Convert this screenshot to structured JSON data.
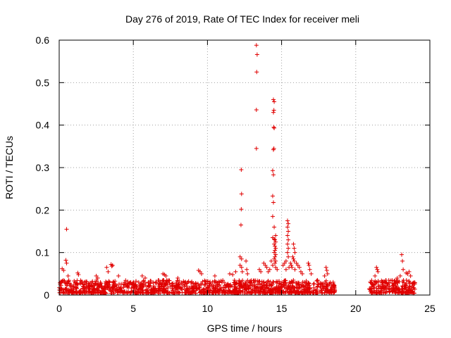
{
  "chart_data": {
    "type": "scatter",
    "title": "Day 276 of 2019, Rate Of TEC Index for receiver meli",
    "xlabel": "GPS time / hours",
    "ylabel": "ROTI / TECUs",
    "xlim": [
      0,
      25
    ],
    "ylim": [
      0,
      0.6
    ],
    "xticks": [
      0,
      5,
      10,
      15,
      20,
      25
    ],
    "xtick_labels": [
      "0",
      "5",
      "10",
      "15",
      "20",
      "25"
    ],
    "yticks": [
      0,
      0.1,
      0.2,
      0.3,
      0.4,
      0.5,
      0.6
    ],
    "ytick_labels": [
      "0",
      "0.1",
      "0.2",
      "0.3",
      "0.4",
      "0.5",
      "0.6"
    ],
    "grid": true,
    "marker": "+",
    "color": "#e00000",
    "background_band": {
      "segments": [
        [
          0.0,
          18.6
        ],
        [
          20.9,
          24.0
        ]
      ],
      "base_min": 0.004,
      "base_max": 0.035
    },
    "series": [
      {
        "name": "ROTI",
        "points": [
          [
            0.5,
            0.155
          ],
          [
            0.2,
            0.062
          ],
          [
            0.3,
            0.058
          ],
          [
            0.45,
            0.082
          ],
          [
            0.5,
            0.075
          ],
          [
            0.6,
            0.045
          ],
          [
            1.25,
            0.052
          ],
          [
            1.3,
            0.048
          ],
          [
            2.5,
            0.045
          ],
          [
            2.6,
            0.04
          ],
          [
            3.2,
            0.065
          ],
          [
            3.3,
            0.055
          ],
          [
            3.5,
            0.072
          ],
          [
            3.6,
            0.07
          ],
          [
            3.55,
            0.068
          ],
          [
            4.0,
            0.045
          ],
          [
            5.6,
            0.045
          ],
          [
            5.8,
            0.04
          ],
          [
            7.0,
            0.05
          ],
          [
            7.1,
            0.048
          ],
          [
            7.2,
            0.045
          ],
          [
            8.0,
            0.04
          ],
          [
            9.4,
            0.058
          ],
          [
            9.5,
            0.055
          ],
          [
            9.6,
            0.05
          ],
          [
            10.5,
            0.045
          ],
          [
            11.5,
            0.05
          ],
          [
            11.7,
            0.048
          ],
          [
            11.9,
            0.055
          ],
          [
            12.2,
            0.09
          ],
          [
            12.3,
            0.085
          ],
          [
            12.2,
            0.07
          ],
          [
            12.3,
            0.065
          ],
          [
            12.35,
            0.055
          ],
          [
            12.28,
            0.295
          ],
          [
            12.3,
            0.238
          ],
          [
            12.28,
            0.202
          ],
          [
            12.26,
            0.165
          ],
          [
            12.6,
            0.08
          ],
          [
            12.65,
            0.06
          ],
          [
            12.7,
            0.05
          ],
          [
            13.3,
            0.588
          ],
          [
            13.35,
            0.566
          ],
          [
            13.32,
            0.525
          ],
          [
            13.3,
            0.436
          ],
          [
            13.3,
            0.345
          ],
          [
            13.5,
            0.06
          ],
          [
            13.6,
            0.055
          ],
          [
            13.8,
            0.075
          ],
          [
            13.9,
            0.07
          ],
          [
            14.0,
            0.065
          ],
          [
            14.1,
            0.055
          ],
          [
            14.45,
            0.46
          ],
          [
            14.5,
            0.455
          ],
          [
            14.48,
            0.435
          ],
          [
            14.45,
            0.43
          ],
          [
            14.47,
            0.395
          ],
          [
            14.5,
            0.393
          ],
          [
            14.48,
            0.345
          ],
          [
            14.45,
            0.342
          ],
          [
            14.4,
            0.293
          ],
          [
            14.45,
            0.283
          ],
          [
            14.4,
            0.233
          ],
          [
            14.45,
            0.218
          ],
          [
            14.4,
            0.185
          ],
          [
            14.5,
            0.16
          ],
          [
            14.6,
            0.14
          ],
          [
            14.55,
            0.13
          ],
          [
            14.6,
            0.125
          ],
          [
            14.5,
            0.12
          ],
          [
            14.55,
            0.115
          ],
          [
            14.6,
            0.11
          ],
          [
            14.55,
            0.105
          ],
          [
            14.5,
            0.1
          ],
          [
            14.6,
            0.095
          ],
          [
            14.55,
            0.09
          ],
          [
            14.5,
            0.085
          ],
          [
            14.6,
            0.08
          ],
          [
            14.55,
            0.075
          ],
          [
            14.4,
            0.07
          ],
          [
            14.6,
            0.065
          ],
          [
            14.7,
            0.06
          ],
          [
            14.4,
            0.135
          ],
          [
            14.5,
            0.132
          ],
          [
            14.3,
            0.08
          ],
          [
            14.2,
            0.06
          ],
          [
            15.4,
            0.175
          ],
          [
            15.45,
            0.168
          ],
          [
            15.4,
            0.16
          ],
          [
            15.45,
            0.15
          ],
          [
            15.4,
            0.14
          ],
          [
            15.45,
            0.13
          ],
          [
            15.4,
            0.12
          ],
          [
            15.45,
            0.11
          ],
          [
            15.4,
            0.1
          ],
          [
            15.45,
            0.09
          ],
          [
            15.3,
            0.08
          ],
          [
            15.2,
            0.075
          ],
          [
            15.1,
            0.07
          ],
          [
            15.5,
            0.065
          ],
          [
            15.3,
            0.06
          ],
          [
            15.6,
            0.075
          ],
          [
            15.65,
            0.07
          ],
          [
            15.7,
            0.065
          ],
          [
            15.8,
            0.12
          ],
          [
            15.85,
            0.11
          ],
          [
            15.9,
            0.1
          ],
          [
            15.75,
            0.09
          ],
          [
            15.8,
            0.085
          ],
          [
            15.85,
            0.08
          ],
          [
            15.9,
            0.06
          ],
          [
            16.0,
            0.075
          ],
          [
            16.1,
            0.07
          ],
          [
            16.2,
            0.065
          ],
          [
            16.3,
            0.055
          ],
          [
            16.4,
            0.05
          ],
          [
            16.8,
            0.075
          ],
          [
            16.85,
            0.07
          ],
          [
            16.9,
            0.06
          ],
          [
            17.0,
            0.05
          ],
          [
            18.0,
            0.065
          ],
          [
            18.05,
            0.058
          ],
          [
            18.1,
            0.05
          ],
          [
            17.9,
            0.045
          ],
          [
            21.4,
            0.065
          ],
          [
            21.45,
            0.06
          ],
          [
            21.5,
            0.055
          ],
          [
            21.3,
            0.045
          ],
          [
            23.1,
            0.095
          ],
          [
            23.15,
            0.08
          ],
          [
            23.2,
            0.06
          ],
          [
            23.4,
            0.052
          ],
          [
            23.5,
            0.05
          ],
          [
            23.6,
            0.055
          ],
          [
            23.7,
            0.045
          ],
          [
            23.0,
            0.045
          ],
          [
            22.8,
            0.04
          ]
        ]
      }
    ]
  }
}
